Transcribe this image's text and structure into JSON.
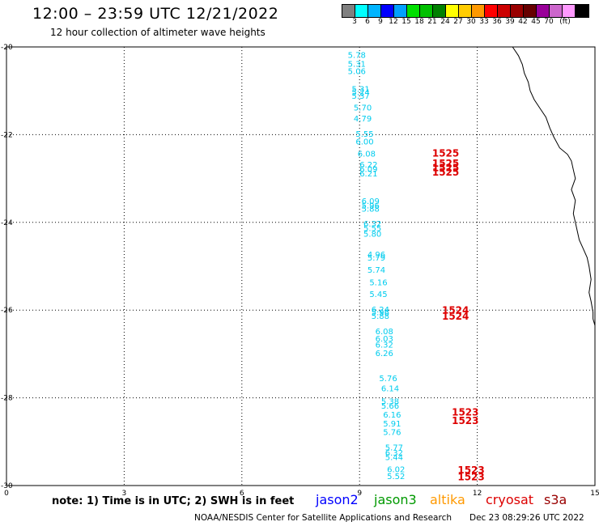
{
  "header": {
    "title": "12:00 – 23:59 UTC 12/21/2022",
    "subtitle": "12 hour collection of altimeter wave heights"
  },
  "legend": {
    "swatches": [
      "#808080",
      "#00ffff",
      "#00b4ff",
      "#0000ff",
      "#00a0ff",
      "#00e000",
      "#00c000",
      "#008000",
      "#ffff00",
      "#ffcc00",
      "#ff9900",
      "#ff0000",
      "#cc0000",
      "#990000",
      "#660000",
      "#990099",
      "#cc66cc",
      "#ff99ff",
      "#000000"
    ],
    "labels": [
      "3",
      "6",
      "9",
      "12",
      "15",
      "18",
      "21",
      "24",
      "27",
      "30",
      "33",
      "36",
      "39",
      "42",
      "45",
      "70",
      "(ft)"
    ]
  },
  "map": {
    "x_ticks": [
      "0",
      "3",
      "6",
      "9",
      "12",
      "15"
    ],
    "y_ticks": [
      "-20",
      "-22",
      "-24",
      "-26",
      "-28",
      "-30"
    ],
    "swh_color": "#00ccee",
    "time_color": "#dd0000",
    "swh_labels": [
      {
        "t": "5.78",
        "lon": 8.7,
        "lat": -20.25
      },
      {
        "t": "5.31",
        "lon": 8.7,
        "lat": -20.45
      },
      {
        "t": "5.06",
        "lon": 8.7,
        "lat": -20.62
      },
      {
        "t": "5.31",
        "lon": 8.8,
        "lat": -21.02
      },
      {
        "t": "5.24",
        "lon": 8.8,
        "lat": -21.1
      },
      {
        "t": "5.37",
        "lon": 8.8,
        "lat": -21.18
      },
      {
        "t": "5.70",
        "lon": 8.85,
        "lat": -21.45
      },
      {
        "t": "4.79",
        "lon": 8.85,
        "lat": -21.7
      },
      {
        "t": "5.55",
        "lon": 8.9,
        "lat": -22.05
      },
      {
        "t": "6.00",
        "lon": 8.9,
        "lat": -22.22
      },
      {
        "t": "6.08",
        "lon": 8.95,
        "lat": -22.5
      },
      {
        "t": "6.22",
        "lon": 9.0,
        "lat": -22.75
      },
      {
        "t": "6.09",
        "lon": 9.0,
        "lat": -22.85
      },
      {
        "t": "6.21",
        "lon": 9.0,
        "lat": -22.95
      },
      {
        "t": "6.09",
        "lon": 9.05,
        "lat": -23.58
      },
      {
        "t": "5.96",
        "lon": 9.05,
        "lat": -23.68
      },
      {
        "t": "5.88",
        "lon": 9.05,
        "lat": -23.75
      },
      {
        "t": "6.32",
        "lon": 9.1,
        "lat": -24.1
      },
      {
        "t": "5.55",
        "lon": 9.1,
        "lat": -24.2
      },
      {
        "t": "5.80",
        "lon": 9.1,
        "lat": -24.33
      },
      {
        "t": "4.96",
        "lon": 9.2,
        "lat": -24.8
      },
      {
        "t": "5.79",
        "lon": 9.2,
        "lat": -24.87
      },
      {
        "t": "5.74",
        "lon": 9.2,
        "lat": -25.15
      },
      {
        "t": "5.16",
        "lon": 9.25,
        "lat": -25.43
      },
      {
        "t": "5.45",
        "lon": 9.25,
        "lat": -25.7
      },
      {
        "t": "6.24",
        "lon": 9.3,
        "lat": -26.05
      },
      {
        "t": "5.96",
        "lon": 9.3,
        "lat": -26.12
      },
      {
        "t": "5.88",
        "lon": 9.3,
        "lat": -26.2
      },
      {
        "t": "6.08",
        "lon": 9.4,
        "lat": -26.55
      },
      {
        "t": "6.03",
        "lon": 9.4,
        "lat": -26.72
      },
      {
        "t": "6.32",
        "lon": 9.4,
        "lat": -26.85
      },
      {
        "t": "6.26",
        "lon": 9.4,
        "lat": -27.05
      },
      {
        "t": "5.76",
        "lon": 9.5,
        "lat": -27.62
      },
      {
        "t": "6.14",
        "lon": 9.55,
        "lat": -27.85
      },
      {
        "t": "5.38",
        "lon": 9.55,
        "lat": -28.15
      },
      {
        "t": "5.66",
        "lon": 9.55,
        "lat": -28.25
      },
      {
        "t": "6.16",
        "lon": 9.6,
        "lat": -28.45
      },
      {
        "t": "5.91",
        "lon": 9.6,
        "lat": -28.65
      },
      {
        "t": "5.76",
        "lon": 9.6,
        "lat": -28.85
      },
      {
        "t": "5.77",
        "lon": 9.65,
        "lat": -29.2
      },
      {
        "t": "6.32",
        "lon": 9.65,
        "lat": -29.32
      },
      {
        "t": "5.44",
        "lon": 9.65,
        "lat": -29.42
      },
      {
        "t": "6.02",
        "lon": 9.7,
        "lat": -29.7
      },
      {
        "t": "5.52",
        "lon": 9.7,
        "lat": -29.85
      }
    ],
    "time_labels": [
      {
        "t": "1525",
        "lon": 10.85,
        "lat": -22.5
      },
      {
        "t": "1525",
        "lon": 10.85,
        "lat": -22.73
      },
      {
        "t": "1525",
        "lon": 10.85,
        "lat": -22.83
      },
      {
        "t": "1525",
        "lon": 10.85,
        "lat": -22.93
      },
      {
        "t": "1524",
        "lon": 11.1,
        "lat": -26.08
      },
      {
        "t": "1524",
        "lon": 11.1,
        "lat": -26.22
      },
      {
        "t": "1523",
        "lon": 11.35,
        "lat": -28.4
      },
      {
        "t": "1523",
        "lon": 11.35,
        "lat": -28.6
      },
      {
        "t": "1523",
        "lon": 11.5,
        "lat": -29.72
      },
      {
        "t": "1523",
        "lon": 11.5,
        "lat": -29.88
      }
    ],
    "coastline": [
      [
        12.9,
        -20.0
      ],
      [
        13.05,
        -20.2
      ],
      [
        13.15,
        -20.4
      ],
      [
        13.2,
        -20.6
      ],
      [
        13.3,
        -20.8
      ],
      [
        13.35,
        -21.0
      ],
      [
        13.45,
        -21.2
      ],
      [
        13.6,
        -21.4
      ],
      [
        13.75,
        -21.6
      ],
      [
        13.85,
        -21.85
      ],
      [
        13.95,
        -22.05
      ],
      [
        14.1,
        -22.3
      ],
      [
        14.3,
        -22.45
      ],
      [
        14.4,
        -22.6
      ],
      [
        14.45,
        -22.8
      ],
      [
        14.5,
        -23.0
      ],
      [
        14.4,
        -23.25
      ],
      [
        14.5,
        -23.5
      ],
      [
        14.45,
        -23.8
      ],
      [
        14.5,
        -24.0
      ],
      [
        14.55,
        -24.2
      ],
      [
        14.6,
        -24.4
      ],
      [
        14.7,
        -24.6
      ],
      [
        14.8,
        -24.8
      ],
      [
        14.85,
        -25.0
      ],
      [
        14.9,
        -25.3
      ],
      [
        14.85,
        -25.6
      ],
      [
        14.9,
        -25.8
      ],
      [
        14.95,
        -26.05
      ],
      [
        14.95,
        -26.2
      ],
      [
        15.0,
        -26.35
      ]
    ]
  },
  "notes": {
    "note_text": "note:  1) Time is in UTC;  2) SWH is in feet",
    "satellites": [
      {
        "name": "jason2",
        "color": "#0000ff"
      },
      {
        "name": "jason3",
        "color": "#009900"
      },
      {
        "name": "altika",
        "color": "#ff9900"
      },
      {
        "name": "cryosat",
        "color": "#dd0000"
      },
      {
        "name": "s3a",
        "color": "#990000"
      }
    ],
    "credit": "NOAA/NESDIS Center for Satellite Applications and Research",
    "timestamp": "Dec 23 08:29:26 UTC 2022"
  }
}
